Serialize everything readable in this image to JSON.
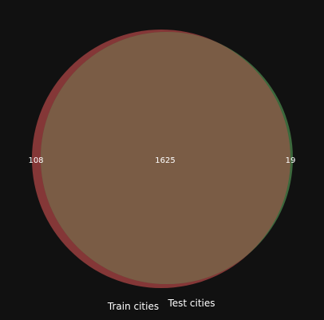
{
  "chart_data": {
    "type": "venn",
    "sets": [
      {
        "name": "Train cities",
        "color": "#8b3a3a"
      },
      {
        "name": "Test cities",
        "color": "#3f6e3f"
      }
    ],
    "regions": [
      {
        "label": "Train cities only",
        "sets": [
          "Train cities"
        ],
        "value": 108,
        "text": "108"
      },
      {
        "label": "Both",
        "sets": [
          "Train cities",
          "Test cities"
        ],
        "value": 1625,
        "text": "1625"
      },
      {
        "label": "Test cities only",
        "sets": [
          "Test cities"
        ],
        "value": 19,
        "text": "19"
      }
    ],
    "overlap_color": "#7a5c45",
    "background": "#111111"
  }
}
